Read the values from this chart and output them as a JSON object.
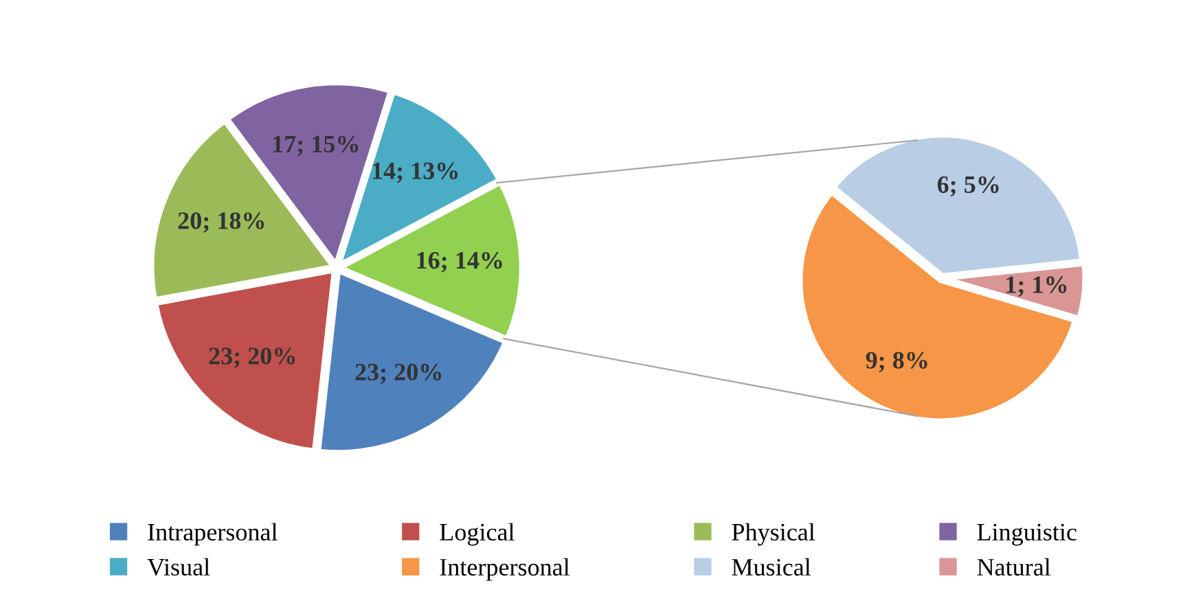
{
  "chart_data": [
    {
      "type": "pie",
      "categories": [
        "Intrapersonal",
        "Logical",
        "Physical",
        "Linguistic",
        "Visual",
        null
      ],
      "values": [
        23,
        23,
        20,
        17,
        14,
        16
      ],
      "colors": [
        "#4f81bd",
        "#c0504d",
        "#9bbb59",
        "#8064a2",
        "#4bacc6",
        "#92d050"
      ],
      "value_labels": [
        "23; 20%",
        "23; 20%",
        "20; 18%",
        "17; 15%",
        "14; 13%",
        "16; 14%"
      ],
      "legend": "bottom"
    },
    {
      "type": "pie",
      "categories": [
        "Interpersonal",
        "Musical",
        "Natural"
      ],
      "values": [
        9,
        6,
        1
      ],
      "colors": [
        "#f79646",
        "#b9cde5",
        "#d99694"
      ],
      "value_labels": [
        "9; 8%",
        "6; 5%",
        "1; 1%"
      ],
      "legend": "bottom"
    }
  ]
}
